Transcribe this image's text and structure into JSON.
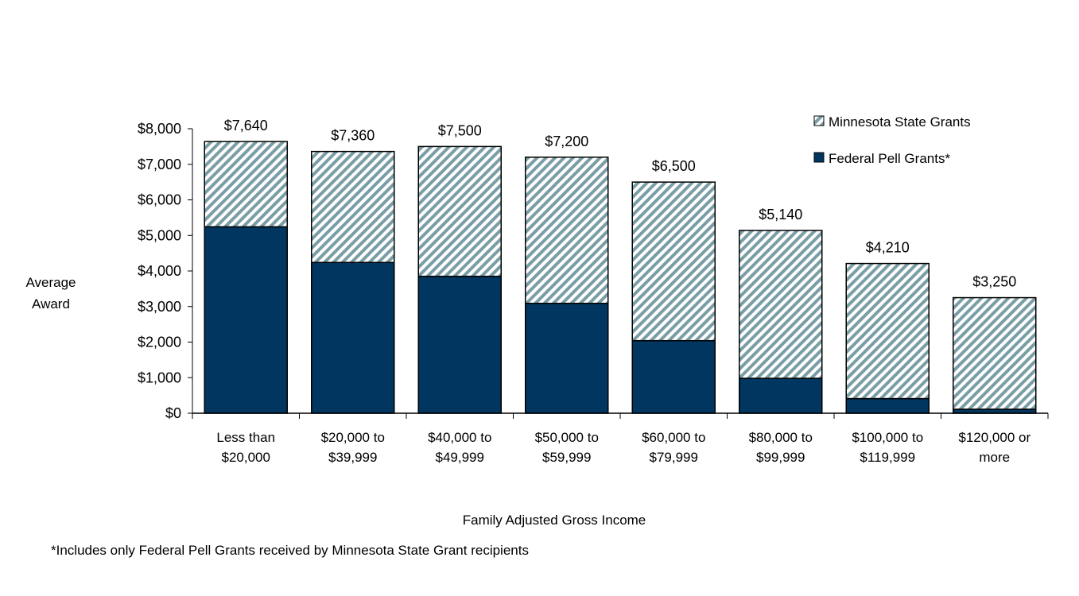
{
  "chart_data": {
    "type": "bar",
    "stacked": true,
    "title": "",
    "xlabel": "Family Adjusted Gross Income",
    "ylabel": [
      "Average",
      "Award"
    ],
    "ylim": [
      0,
      8000
    ],
    "yticks": [
      0,
      1000,
      2000,
      3000,
      4000,
      5000,
      6000,
      7000,
      8000
    ],
    "ytick_labels": [
      "$0",
      "$1,000",
      "$2,000",
      "$3,000",
      "$4,000",
      "$5,000",
      "$6,000",
      "$7,000",
      "$8,000"
    ],
    "categories": [
      [
        "Less than",
        "$20,000"
      ],
      [
        "$20,000 to",
        "$39,999"
      ],
      [
        "$40,000 to",
        "$49,999"
      ],
      [
        "$50,000 to",
        "$59,999"
      ],
      [
        "$60,000 to",
        "$79,999"
      ],
      [
        "$80,000 to",
        "$99,999"
      ],
      [
        "$100,000 to",
        "$119,999"
      ],
      [
        "$120,000 or",
        "more"
      ]
    ],
    "series": [
      {
        "name": "Federal Pell Grants*",
        "color": "#003660",
        "values": [
          5240,
          4240,
          3850,
          3090,
          2040,
          980,
          410,
          110
        ]
      },
      {
        "name": "Minnesota State Grants",
        "color": "#7a9ea6",
        "pattern": "diagonal-hatch",
        "values": [
          2400,
          3120,
          3650,
          4110,
          4460,
          4160,
          3800,
          3140
        ]
      }
    ],
    "totals": [
      7640,
      7360,
      7500,
      7200,
      6500,
      5140,
      4210,
      3250
    ],
    "total_labels": [
      "$7,640",
      "$7,360",
      "$7,500",
      "$7,200",
      "$6,500",
      "$5,140",
      "$4,210",
      "$3,250"
    ],
    "legend": [
      "Minnesota State Grants",
      "Federal Pell Grants*"
    ],
    "legend_position": "top-right",
    "grid": false
  },
  "footnote": "*Includes only Federal Pell Grants received by Minnesota State Grant recipients"
}
